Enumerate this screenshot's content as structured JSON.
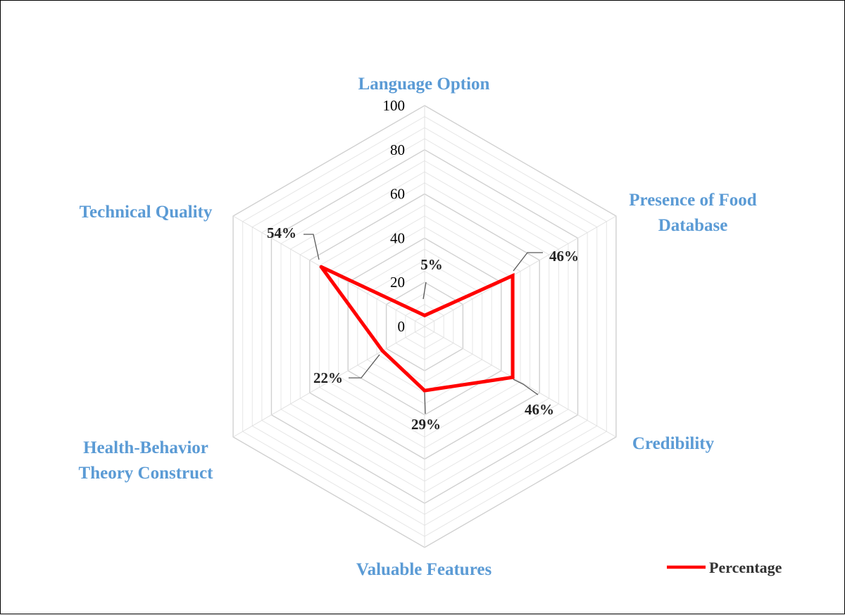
{
  "chart_data": {
    "type": "radar",
    "categories": [
      "Language Option",
      "Presence of Food Database",
      "Credibility",
      "Valuable Features",
      "Health-Behavior Theory Construct",
      "Technical Quality"
    ],
    "category_lines": [
      [
        "Language Option"
      ],
      [
        "Presence of Food",
        "Database"
      ],
      [
        "Credibility"
      ],
      [
        "Valuable Features"
      ],
      [
        "Health-Behavior",
        "Theory Construct"
      ],
      [
        "Technical Quality"
      ]
    ],
    "series": [
      {
        "name": "Percentage",
        "values": [
          5,
          46,
          46,
          29,
          22,
          54
        ],
        "data_labels": [
          "5%",
          "46%",
          "46%",
          "29%",
          "22%",
          "54%"
        ],
        "color": "#ff0000"
      }
    ],
    "r_ticks": [
      "0",
      "20",
      "40",
      "60",
      "80",
      "100"
    ],
    "r_range": [
      0,
      100
    ],
    "grid": true,
    "grid_color": "#d9d9d9",
    "category_label_color": "#5b9bd5",
    "legend_position": "bottom-right"
  }
}
